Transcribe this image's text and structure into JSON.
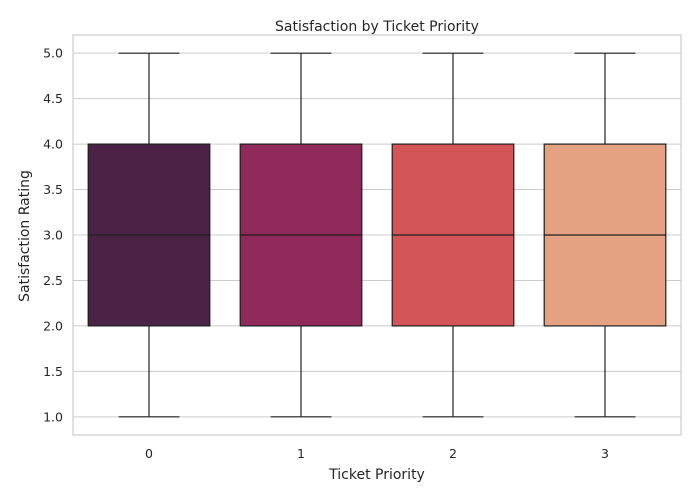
{
  "chart_data": {
    "type": "box",
    "title": "Satisfaction by Ticket Priority",
    "xlabel": "Ticket Priority",
    "ylabel": "Satisfaction Rating",
    "categories": [
      "0",
      "1",
      "2",
      "3"
    ],
    "boxes": [
      {
        "category": "0",
        "min": 1.0,
        "q1": 2.0,
        "median": 3.0,
        "q3": 4.0,
        "max": 5.0,
        "color": "#4a2245"
      },
      {
        "category": "1",
        "min": 1.0,
        "q1": 2.0,
        "median": 3.0,
        "q3": 4.0,
        "max": 5.0,
        "color": "#8f2a5a"
      },
      {
        "category": "2",
        "min": 1.0,
        "q1": 2.0,
        "median": 3.0,
        "q3": 4.0,
        "max": 5.0,
        "color": "#d35557"
      },
      {
        "category": "3",
        "min": 1.0,
        "q1": 2.0,
        "median": 3.0,
        "q3": 4.0,
        "max": 5.0,
        "color": "#e5a283"
      }
    ],
    "ylim": [
      0.8,
      5.2
    ],
    "yticks": [
      "1.0",
      "1.5",
      "2.0",
      "2.5",
      "3.0",
      "3.5",
      "4.0",
      "4.5",
      "5.0"
    ],
    "grid": true
  }
}
